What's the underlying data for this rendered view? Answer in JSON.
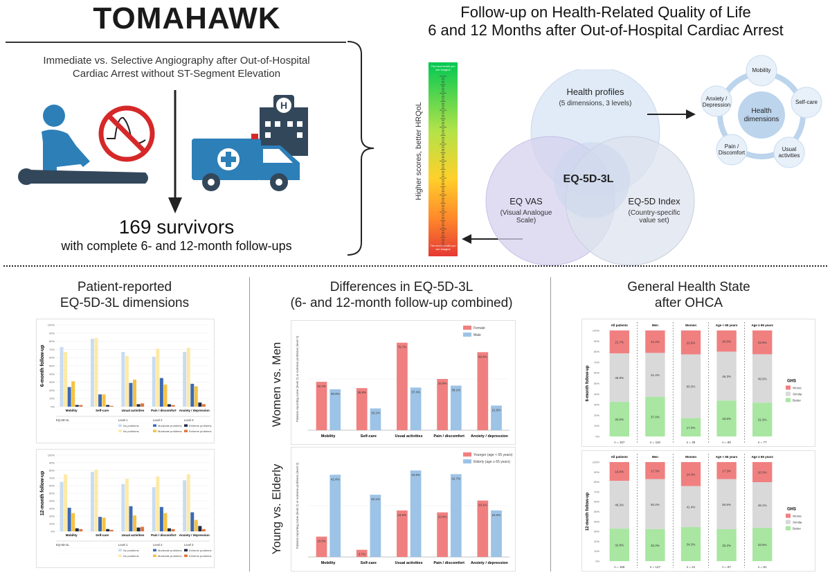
{
  "header": {
    "title": "TOMAHAWK",
    "subtitle_line1": "Immediate vs. Selective Angiography after Out-of-Hospital",
    "subtitle_line2": "Cardiac Arrest without ST-Segment Elevation",
    "survivors": "169 survivors",
    "followup": "with complete 6- and 12-month follow-ups"
  },
  "overview": {
    "title_line1": "Follow-up on Health-Related Quality of Life",
    "title_line2": "6 and 12 Months after Out-of-Hospital Cardiac Arrest",
    "vas_axis_label": "Higher scores, better HRQoL",
    "vas_top": "The best health you can imagine",
    "vas_bottom": "The worst health you can imagine",
    "venn_center": "EQ-5D-3L",
    "venn_top_title": "Health profiles",
    "venn_top_sub": "(5 dimensions, 3 levels)",
    "venn_left_title": "EQ VAS",
    "venn_left_sub1": "(Visual Analogue",
    "venn_left_sub2": "Scale)",
    "venn_right_title": "EQ-5D Index",
    "venn_right_sub1": "(Country-specific",
    "venn_right_sub2": "value set)",
    "dim_center1": "Health",
    "dim_center2": "dimensions",
    "dims": [
      [
        "Mobility"
      ],
      [
        "Self-care"
      ],
      [
        "Usual",
        "activities"
      ],
      [
        "Pain /",
        "Discomfort"
      ],
      [
        "Anxiety /",
        "Depression"
      ]
    ]
  },
  "sections": {
    "left_title1": "Patient-reported",
    "left_title2": "EQ-5D-3L dimensions",
    "mid_title1": "Differences in EQ-5D-3L",
    "mid_title2": "(6- and 12-month follow-up combined)",
    "right_title1": "General Health State",
    "right_title2": "after OHCA",
    "left_panel_6": "6-month follow-up",
    "left_panel_12": "12-month follow-up",
    "mid_row1": "Women vs. Men",
    "mid_row2": "Young vs. Elderly",
    "right_panel_6": "6-month follow-up",
    "right_panel_12": "12-month follow-up"
  },
  "colors": {
    "no_problem_light": "#c9dcef",
    "no_problem_yellow": "#fde9a8",
    "moderate_blue": "#3d6bb3",
    "moderate_yellow": "#f5c242",
    "extreme_dark": "#1e2a44",
    "extreme_orange": "#e0743a",
    "female_red": "#f08080",
    "male_blue": "#9dc3e6",
    "worse": "#f08080",
    "similar": "#d9d9d9",
    "better": "#a8e6a1"
  },
  "chart_data": [
    {
      "type": "bar",
      "panel": "Patient-reported EQ-5D-3L dimensions, 6-month follow-up",
      "categories": [
        "Mobility",
        "Self-care",
        "Usual activities",
        "Pain / discomfort",
        "Anxiety / depression"
      ],
      "ylim": [
        0,
        100
      ],
      "yticks": [
        "0%",
        "10%",
        "20%",
        "30%",
        "40%",
        "50%",
        "60%",
        "70%",
        "80%",
        "90%",
        "100%"
      ],
      "series": [
        {
          "name": "No problems",
          "values": [
            73,
            83,
            67,
            61,
            67
          ]
        },
        {
          "name": "No problems",
          "values": [
            67,
            84,
            62,
            71,
            72
          ]
        },
        {
          "name": "Moderate problems",
          "values": [
            24,
            15,
            29,
            35,
            28
          ]
        },
        {
          "name": "Moderate problems",
          "values": [
            31,
            15,
            33,
            27,
            25
          ]
        },
        {
          "name": "Extreme problems",
          "values": [
            2,
            2,
            3,
            3,
            5
          ]
        },
        {
          "name": "Extreme problems",
          "values": [
            2,
            1,
            4,
            2,
            3
          ]
        }
      ],
      "legend_header": [
        "EQ-5D-3L",
        "Level 1",
        "Level 2",
        "Level 3"
      ]
    },
    {
      "type": "bar",
      "panel": "Patient-reported EQ-5D-3L dimensions, 12-month follow-up",
      "categories": [
        "Mobility",
        "Self-care",
        "Usual activities",
        "Pain / discomfort",
        "Anxiety / depression"
      ],
      "ylim": [
        0,
        100
      ],
      "yticks": [
        "0%",
        "10%",
        "20%",
        "30%",
        "40%",
        "50%",
        "60%",
        "70%",
        "80%",
        "90%",
        "100%"
      ],
      "series": [
        {
          "name": "No problems",
          "values": [
            65,
            78,
            62,
            58,
            67
          ]
        },
        {
          "name": "No problems",
          "values": [
            75,
            81,
            69,
            72,
            75
          ]
        },
        {
          "name": "Moderate problems",
          "values": [
            31,
            19,
            33,
            32,
            25
          ]
        },
        {
          "name": "Moderate problems",
          "values": [
            24,
            18,
            21,
            24,
            15
          ]
        },
        {
          "name": "Extreme problems",
          "values": [
            4,
            3,
            5,
            4,
            7
          ]
        },
        {
          "name": "Extreme problems",
          "values": [
            3,
            2,
            6,
            3,
            3
          ]
        }
      ],
      "legend_header": [
        "EQ-5D-3L",
        "Level 1",
        "Level 2",
        "Level 3"
      ]
    },
    {
      "type": "bar",
      "panel": "Women vs. Men",
      "categories": [
        "Mobility",
        "Self-care",
        "Usual activities",
        "Pain / discomfort",
        "Anxiety / depression"
      ],
      "ylim": [
        0,
        100
      ],
      "series": [
        {
          "name": "Female",
          "values": [
            42.4,
            36.9,
            76.7,
            44.9,
            68.4
          ]
        },
        {
          "name": "Male",
          "values": [
            35.9,
            19.1,
            37.4,
            39.1,
            21.6
          ]
        }
      ],
      "labels": [
        [
          "42.4%",
          "36.9%",
          "76.7%",
          "44.9%",
          "68.4%"
        ],
        [
          "35.9%",
          "19.1%",
          "37.4%",
          "39.1%",
          "21.6%"
        ]
      ]
    },
    {
      "type": "bar",
      "panel": "Young vs. Elderly",
      "categories": [
        "Mobility",
        "Self-care",
        "Usual activities",
        "Pain / discomfort",
        "Anxiety / depression"
      ],
      "ylim": [
        0,
        50
      ],
      "series": [
        {
          "name": "Younger (age < 65 years)",
          "values": [
            10.5,
            3.7,
            24.0,
            23.0,
            29.1
          ]
        },
        {
          "name": "Elderly (age ≥ 65 years)",
          "values": [
            42.4,
            32.1,
            44.6,
            42.7,
            24.0
          ]
        }
      ],
      "labels": [
        [
          "10.5%",
          "3.7%",
          "24.0%",
          "23.0%",
          "29.1%"
        ],
        [
          "42.4%",
          "32.1%",
          "44.6%",
          "42.7%",
          "24.0%"
        ]
      ]
    },
    {
      "type": "bar",
      "panel": "General Health State, 6-month follow-up",
      "categories": [
        "All patients",
        "Men",
        "Women",
        "Age < 65 years",
        "Age ≥ 65 years"
      ],
      "ns": [
        "n = 157",
        "n = 118",
        "n = 39",
        "n = 80",
        "n = 77"
      ],
      "series": [
        {
          "name": "Worse",
          "values": [
            21.7,
            21.2,
            22.6,
            20.0,
            22.5
          ]
        },
        {
          "name": "Similar",
          "values": [
            45.8,
            41.4,
            60.3,
            46.3,
            45.6
          ]
        },
        {
          "name": "Better",
          "values": [
            32.6,
            37.4,
            17.3,
            33.8,
            31.9
          ]
        }
      ],
      "labels": [
        [
          "21.7%",
          "21.2%",
          "22.6%",
          "20.0%",
          "22.5%"
        ],
        [
          "45.8%",
          "41.4%",
          "60.3%",
          "46.3%",
          "45.6%"
        ],
        [
          "32.6%",
          "37.4%",
          "17.3%",
          "33.8%",
          "31.9%"
        ]
      ],
      "legend_title": "GHS"
    },
    {
      "type": "bar",
      "panel": "General Health State, 12-month follow-up",
      "categories": [
        "All patients",
        "Men",
        "Women",
        "Age < 65 years",
        "Age ≥ 65 years"
      ],
      "ns": [
        "n = 165",
        "n = 127",
        "n = 41",
        "n = 87",
        "n = 81"
      ],
      "series": [
        {
          "name": "Worse",
          "values": [
            19.0,
            17.3,
            24.3,
            17.3,
            20.3
          ]
        },
        {
          "name": "Similar",
          "values": [
            48.3,
            50.4,
            41.4,
            50.6,
            46.1
          ]
        },
        {
          "name": "Better",
          "values": [
            32.8,
            32.3,
            34.3,
            32.2,
            33.6
          ]
        }
      ],
      "labels": [
        [
          "19.0%",
          "17.3%",
          "24.3%",
          "17.3%",
          "20.3%"
        ],
        [
          "48.3%",
          "50.4%",
          "41.4%",
          "50.6%",
          "46.1%"
        ],
        [
          "32.8%",
          "32.3%",
          "34.3%",
          "32.2%",
          "33.6%"
        ]
      ],
      "legend_title": "GHS"
    }
  ]
}
